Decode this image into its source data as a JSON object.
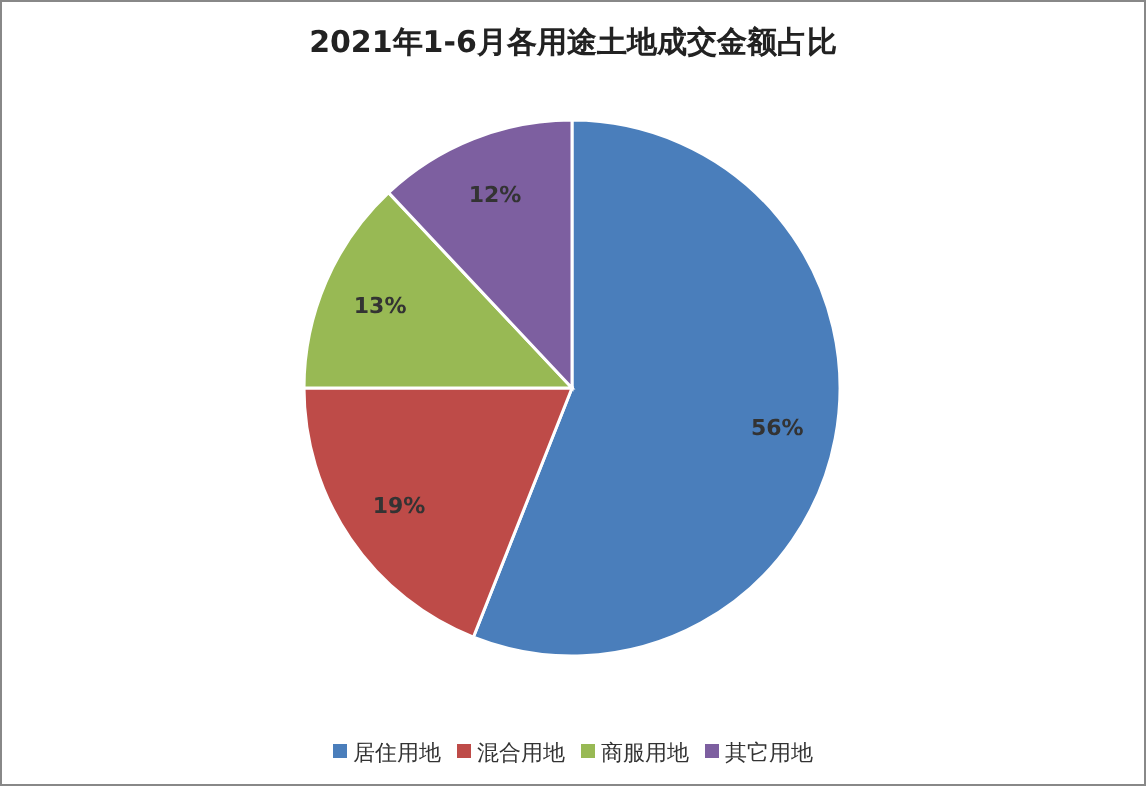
{
  "chart_data": {
    "type": "pie",
    "title": "2021年1-6月各用途土地成交金额占比",
    "categories": [
      "居住用地",
      "混合用地",
      "商服用地",
      "其它用地"
    ],
    "values": [
      56,
      19,
      13,
      12
    ],
    "colors": [
      "#4a7ebb",
      "#be4b48",
      "#98b954",
      "#7d5fa0"
    ],
    "value_labels": [
      "56%",
      "19%",
      "13%",
      "12%"
    ],
    "legend": "bottom"
  }
}
